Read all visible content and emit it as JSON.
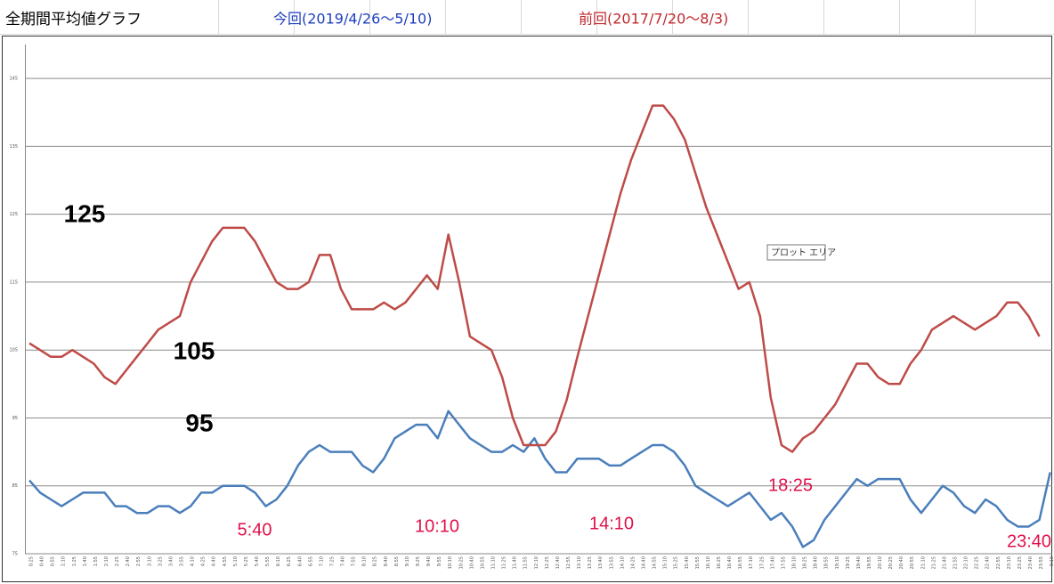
{
  "chart_data": {
    "type": "line",
    "title": "全期間平均値グラフ",
    "categories": [
      "0:25",
      "0:40",
      "0:55",
      "1:10",
      "1:25",
      "1:40",
      "1:55",
      "2:10",
      "2:25",
      "2:40",
      "2:55",
      "3:10",
      "3:25",
      "3:40",
      "3:55",
      "4:10",
      "4:25",
      "4:40",
      "4:55",
      "5:10",
      "5:25",
      "5:40",
      "5:55",
      "6:10",
      "6:25",
      "6:40",
      "6:55",
      "7:10",
      "7:25",
      "7:40",
      "7:55",
      "8:10",
      "8:25",
      "8:40",
      "8:55",
      "9:10",
      "9:25",
      "9:40",
      "9:55",
      "10:10",
      "10:25",
      "10:40",
      "10:55",
      "11:10",
      "11:25",
      "11:40",
      "11:55",
      "12:10",
      "12:25",
      "12:40",
      "12:55",
      "13:10",
      "13:25",
      "13:40",
      "13:55",
      "14:10",
      "14:25",
      "14:40",
      "14:55",
      "15:10",
      "15:25",
      "15:40",
      "15:55",
      "16:10",
      "16:25",
      "16:40",
      "16:55",
      "17:10",
      "17:25",
      "17:40",
      "17:55",
      "18:10",
      "18:25",
      "18:40",
      "18:55",
      "19:10",
      "19:25",
      "19:40",
      "19:55",
      "20:10",
      "20:25",
      "20:40",
      "20:55",
      "21:10",
      "21:25",
      "21:40",
      "21:55",
      "22:10",
      "22:25",
      "22:40",
      "22:55",
      "23:10",
      "23:25",
      "23:40",
      "23:55",
      "0:10"
    ],
    "series": [
      {
        "name": "今回(2019/4/26～5/10)",
        "color": "#4a7ebb",
        "values": [
          85.8,
          84,
          83,
          82,
          83,
          84,
          84,
          84,
          82,
          82,
          81,
          81,
          82,
          82,
          81,
          82,
          84,
          84,
          85,
          85,
          85,
          84,
          82,
          83,
          85,
          88,
          90,
          91,
          90,
          90,
          90,
          88,
          87,
          89,
          92,
          93,
          94,
          94,
          92,
          96,
          94,
          92,
          91,
          90,
          90,
          91,
          90,
          92,
          89,
          87,
          87,
          89,
          89,
          89,
          88,
          88,
          89,
          90,
          91,
          91,
          90,
          88,
          85,
          84,
          83,
          82,
          83,
          84,
          82,
          80,
          81,
          79,
          76,
          77,
          80,
          82,
          84,
          86,
          85,
          86,
          86,
          86,
          83,
          81,
          83,
          85,
          84,
          82,
          81,
          83,
          82,
          80,
          79,
          79,
          80,
          87
        ]
      },
      {
        "name": "前回(2017/7/20～8/3)",
        "color": "#be4b48",
        "values": [
          106,
          105,
          104,
          104,
          105,
          104,
          103,
          101,
          100,
          102,
          104,
          106,
          108,
          109,
          110,
          115,
          118,
          121,
          123,
          123,
          123,
          121,
          118,
          115,
          114,
          114,
          115,
          119,
          119,
          114,
          111,
          111,
          111,
          112,
          111,
          112,
          114,
          116,
          114,
          122,
          115,
          107,
          106,
          105,
          101,
          95,
          91,
          91,
          91,
          93,
          97.6,
          104,
          110,
          116,
          122,
          128,
          133,
          137,
          141,
          141,
          139,
          136,
          131,
          126,
          122,
          118,
          114,
          115,
          110,
          98,
          91,
          90,
          92,
          93,
          95,
          97,
          100,
          103,
          103,
          101,
          100,
          100,
          103,
          105,
          108,
          109,
          110,
          109,
          108,
          109,
          110,
          112,
          112,
          110,
          107,
          null
        ]
      }
    ],
    "ylim": [
      75,
      150
    ],
    "yticks": [
      75,
      85,
      95,
      105,
      115,
      125,
      135,
      145
    ],
    "grid": true,
    "annotations": [
      "125",
      "105",
      "95",
      "5:40",
      "10:10",
      "14:10",
      "18:25",
      "23:40"
    ],
    "tooltip": "プロット エリア"
  }
}
